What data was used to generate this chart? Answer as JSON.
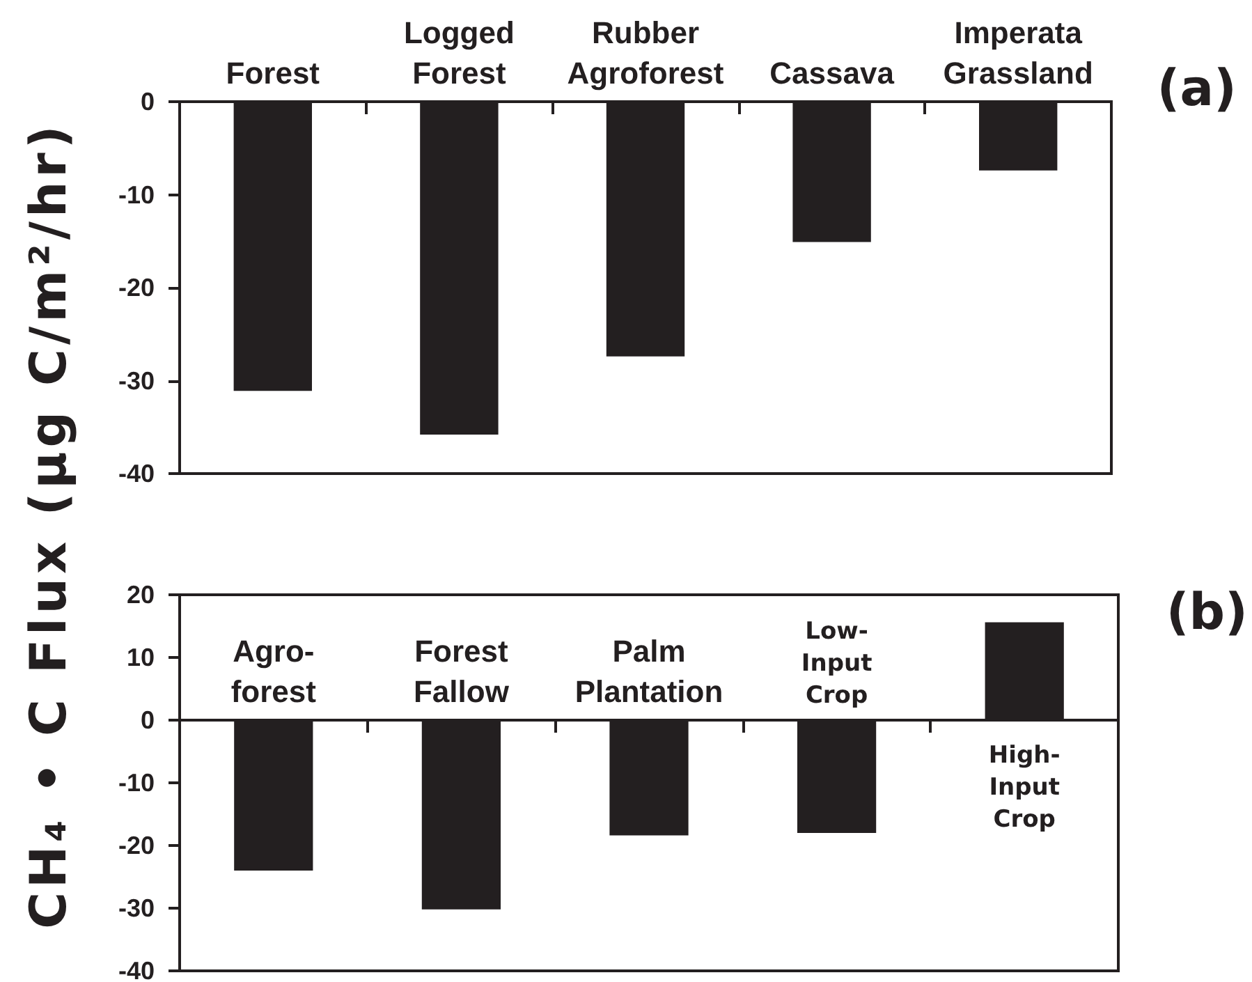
{
  "chart_data": [
    {
      "type": "bar",
      "annotations": [
        "(a)"
      ],
      "ylabel": "CH₄ • C Flux (μg C/m²/hr)",
      "categories": [
        "Forest",
        "Logged Forest",
        "Rubber Agroforest",
        "Cassava",
        "Imperata Grassland"
      ],
      "values": [
        -31.1,
        -35.8,
        -27.4,
        -15.1,
        -7.4
      ],
      "color": "#231f20",
      "ylim": [
        -40,
        0
      ],
      "yticks": [
        -40,
        -30,
        -20,
        -10,
        0
      ]
    },
    {
      "type": "bar",
      "annotations": [
        "(b)"
      ],
      "categories": [
        "Agro-forest",
        "Forest Fallow",
        "Palm Plantation",
        "Low-Input Crop",
        "High-Input Crop"
      ],
      "values": [
        -24.0,
        -30.2,
        -18.4,
        -18.0,
        15.6
      ],
      "color": "#231f20",
      "ylim": [
        -40,
        20
      ],
      "yticks": [
        -40,
        -30,
        -20,
        -10,
        0,
        10,
        20
      ]
    }
  ]
}
